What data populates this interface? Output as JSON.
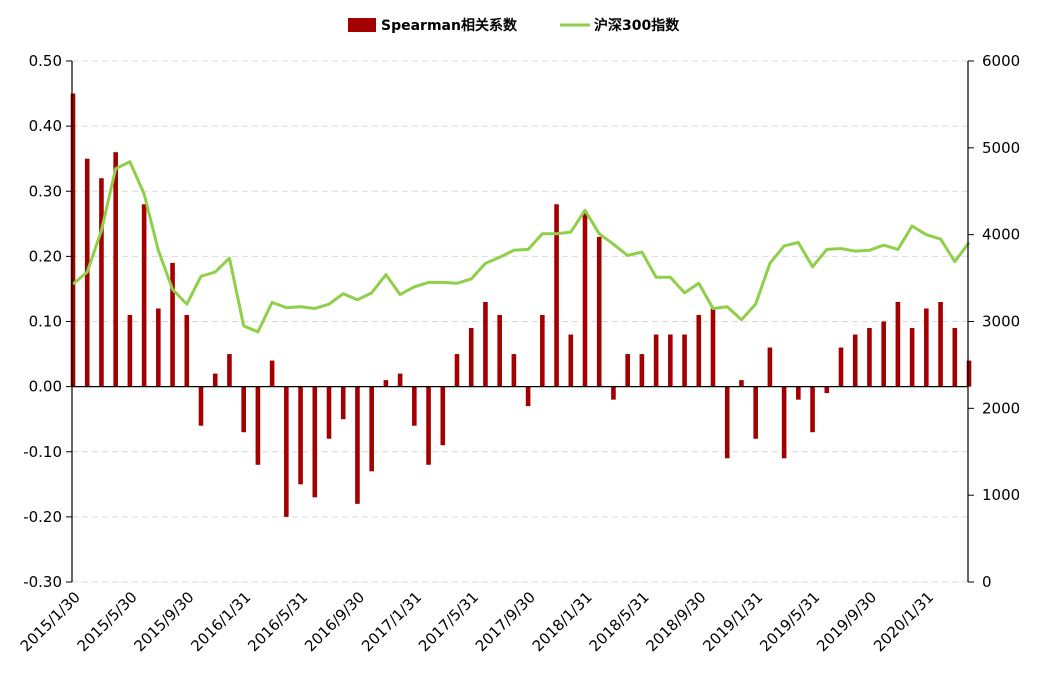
{
  "chart_data": {
    "type": "bar+line",
    "title": "",
    "legend": {
      "placement": "top-center"
    },
    "colors": {
      "bar": "#a50000",
      "line": "#8fcf4a",
      "grid": "#d9d9d9",
      "axis": "#000000"
    },
    "y_left": {
      "label": "",
      "range": [
        -0.3,
        0.5
      ],
      "ticks": [
        "0.50",
        "0.40",
        "0.30",
        "0.20",
        "0.10",
        "0.00",
        "-0.10",
        "-0.20",
        "-0.30"
      ],
      "tick_values": [
        0.5,
        0.4,
        0.3,
        0.2,
        0.1,
        0.0,
        -0.1,
        -0.2,
        -0.3
      ]
    },
    "y_right": {
      "label": "",
      "range": [
        0,
        6000
      ],
      "ticks": [
        "6000",
        "5000",
        "4000",
        "3000",
        "2000",
        "1000",
        "0"
      ],
      "tick_values": [
        6000,
        5000,
        4000,
        3000,
        2000,
        1000,
        0
      ]
    },
    "x_ticks": [
      "2015/1/30",
      "2015/5/30",
      "2015/9/30",
      "2016/1/31",
      "2016/5/31",
      "2016/9/30",
      "2017/1/31",
      "2017/5/31",
      "2017/9/30",
      "2018/1/31",
      "2018/5/31",
      "2018/9/30",
      "2019/1/31",
      "2019/5/31",
      "2019/9/30",
      "2020/1/31"
    ],
    "x_tick_month_index": [
      0,
      4,
      8,
      12,
      16,
      20,
      24,
      28,
      32,
      36,
      40,
      44,
      48,
      52,
      56,
      60
    ],
    "months": [
      "2015/1",
      "2015/2",
      "2015/3",
      "2015/4",
      "2015/5",
      "2015/6",
      "2015/7",
      "2015/8",
      "2015/9",
      "2015/10",
      "2015/11",
      "2015/12",
      "2016/1",
      "2016/2",
      "2016/3",
      "2016/4",
      "2016/5",
      "2016/6",
      "2016/7",
      "2016/8",
      "2016/9",
      "2016/10",
      "2016/11",
      "2016/12",
      "2017/1",
      "2017/2",
      "2017/3",
      "2017/4",
      "2017/5",
      "2017/6",
      "2017/7",
      "2017/8",
      "2017/9",
      "2017/10",
      "2017/11",
      "2017/12",
      "2018/1",
      "2018/2",
      "2018/3",
      "2018/4",
      "2018/5",
      "2018/6",
      "2018/7",
      "2018/8",
      "2018/9",
      "2018/10",
      "2018/11",
      "2018/12",
      "2019/1",
      "2019/2",
      "2019/3",
      "2019/4",
      "2019/5",
      "2019/6",
      "2019/7",
      "2019/8",
      "2019/9",
      "2019/10",
      "2019/11",
      "2019/12",
      "2020/1",
      "2020/2",
      "2020/3",
      "2020/4"
    ],
    "series": [
      {
        "name": "Spearman相关系数",
        "kind": "bar",
        "axis": "left",
        "values": [
          0.45,
          0.35,
          0.32,
          0.36,
          0.11,
          0.28,
          0.12,
          0.19,
          0.11,
          -0.06,
          0.02,
          0.05,
          -0.07,
          -0.12,
          0.04,
          -0.2,
          -0.15,
          -0.17,
          -0.08,
          -0.05,
          -0.18,
          -0.13,
          0.01,
          0.02,
          -0.06,
          -0.12,
          -0.09,
          0.05,
          0.09,
          0.13,
          0.11,
          0.05,
          -0.03,
          0.11,
          0.28,
          0.08,
          0.27,
          0.23,
          -0.02,
          0.05,
          0.05,
          0.08,
          0.08,
          0.08,
          0.11,
          0.12,
          -0.11,
          0.01,
          -0.08,
          0.06,
          -0.11,
          -0.02,
          -0.07,
          -0.01,
          0.06,
          0.08,
          0.09,
          0.1,
          0.13,
          0.09,
          0.12,
          0.13,
          0.09,
          0.04
        ]
      },
      {
        "name": "沪深300指数",
        "kind": "line",
        "axis": "right",
        "values": [
          3430,
          3570,
          4050,
          4760,
          4840,
          4470,
          3820,
          3370,
          3200,
          3520,
          3570,
          3730,
          2950,
          2880,
          3220,
          3160,
          3170,
          3150,
          3200,
          3320,
          3250,
          3330,
          3540,
          3310,
          3400,
          3450,
          3450,
          3440,
          3490,
          3670,
          3740,
          3820,
          3830,
          4010,
          4010,
          4030,
          4280,
          4010,
          3890,
          3760,
          3800,
          3510,
          3510,
          3330,
          3440,
          3150,
          3170,
          3020,
          3200,
          3670,
          3870,
          3910,
          3630,
          3830,
          3840,
          3810,
          3820,
          3880,
          3830,
          4100,
          4000,
          3950,
          3690,
          3910
        ]
      }
    ]
  }
}
